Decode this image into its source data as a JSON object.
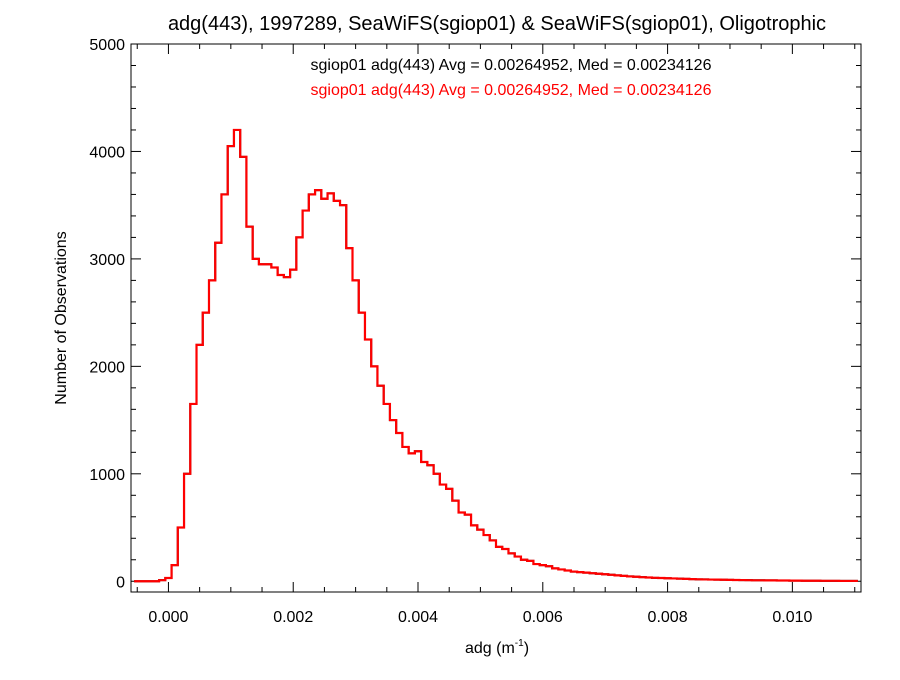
{
  "chart_data": {
    "type": "histogram-step",
    "title": "adg(443), 1997289, SeaWiFS(sgiop01) & SeaWiFS(sgiop01), Oligotrophic",
    "xlabel_base": "adg (m",
    "xlabel_sup": "-1",
    "xlabel_close": ")",
    "ylabel": "Number of Observations",
    "xlim": [
      -0.0006,
      0.0111
    ],
    "ylim": [
      -100,
      5000
    ],
    "xticks": [
      0.0,
      0.002,
      0.004,
      0.006,
      0.008,
      0.01
    ],
    "xtick_labels": [
      "0.000",
      "0.002",
      "0.004",
      "0.006",
      "0.008",
      "0.010"
    ],
    "yticks": [
      0,
      1000,
      2000,
      3000,
      4000,
      5000
    ],
    "ytick_labels": [
      "0",
      "1000",
      "2000",
      "3000",
      "4000",
      "5000"
    ],
    "grid": false,
    "legend_placement": "top-center",
    "colors": {
      "series_black": "#000000",
      "series_red": "#ff0000",
      "axes": "#000000"
    },
    "series": [
      {
        "name": "sgiop01 adg(443) Avg = 0.00264952, Med = 0.00234126",
        "color": "#000000"
      },
      {
        "name": "sgiop01 adg(443) Avg = 0.00264952, Med = 0.00234126",
        "color": "#ff0000"
      }
    ],
    "x": [
      -0.0005,
      -0.0004,
      -0.0003,
      -0.0002,
      -0.0001,
      0.0,
      0.0001,
      0.0002,
      0.0003,
      0.0004,
      0.0005,
      0.0006,
      0.0007,
      0.0008,
      0.0009,
      0.001,
      0.0011,
      0.0012,
      0.0013,
      0.0014,
      0.0015,
      0.0016,
      0.0017,
      0.0018,
      0.0019,
      0.002,
      0.0021,
      0.0022,
      0.0023,
      0.0024,
      0.0025,
      0.0026,
      0.0027,
      0.0028,
      0.0029,
      0.003,
      0.0031,
      0.0032,
      0.0033,
      0.0034,
      0.0035,
      0.0036,
      0.0037,
      0.0038,
      0.0039,
      0.004,
      0.0041,
      0.0042,
      0.0043,
      0.0044,
      0.0045,
      0.0046,
      0.0047,
      0.0048,
      0.0049,
      0.005,
      0.0051,
      0.0052,
      0.0053,
      0.0054,
      0.0055,
      0.0056,
      0.0057,
      0.0058,
      0.0059,
      0.006,
      0.0061,
      0.0062,
      0.0063,
      0.0064,
      0.0065,
      0.0066,
      0.0067,
      0.0068,
      0.0069,
      0.007,
      0.0071,
      0.0072,
      0.0073,
      0.0074,
      0.0075,
      0.0076,
      0.0077,
      0.0078,
      0.0079,
      0.008,
      0.0081,
      0.0082,
      0.0083,
      0.0084,
      0.0085,
      0.0086,
      0.0087,
      0.0088,
      0.0089,
      0.009,
      0.0091,
      0.0092,
      0.0093,
      0.0094,
      0.0095,
      0.0096,
      0.0097,
      0.0098,
      0.0099,
      0.01,
      0.0101,
      0.0102,
      0.0103,
      0.0104,
      0.0105,
      0.0106,
      0.0107,
      0.0108,
      0.0109,
      0.011
    ],
    "values": [
      0,
      0,
      0,
      0,
      10,
      30,
      150,
      500,
      1000,
      1650,
      2200,
      2500,
      2800,
      3150,
      3600,
      4050,
      4200,
      3950,
      3300,
      3000,
      2950,
      2950,
      2920,
      2850,
      2830,
      2900,
      3200,
      3450,
      3600,
      3640,
      3560,
      3610,
      3540,
      3500,
      3100,
      2800,
      2500,
      2250,
      2000,
      1820,
      1650,
      1500,
      1380,
      1250,
      1190,
      1210,
      1110,
      1080,
      1000,
      900,
      860,
      750,
      640,
      620,
      520,
      480,
      430,
      380,
      320,
      300,
      260,
      230,
      200,
      190,
      160,
      150,
      140,
      120,
      110,
      100,
      90,
      85,
      80,
      75,
      70,
      65,
      60,
      55,
      50,
      45,
      42,
      38,
      35,
      32,
      30,
      28,
      26,
      24,
      22,
      20,
      18,
      17,
      16,
      15,
      14,
      13,
      12,
      11,
      10,
      9,
      9,
      8,
      8,
      7,
      7,
      6,
      6,
      5,
      5,
      5,
      4,
      4,
      4,
      3,
      3,
      3
    ],
    "bin_width": 0.0001
  }
}
